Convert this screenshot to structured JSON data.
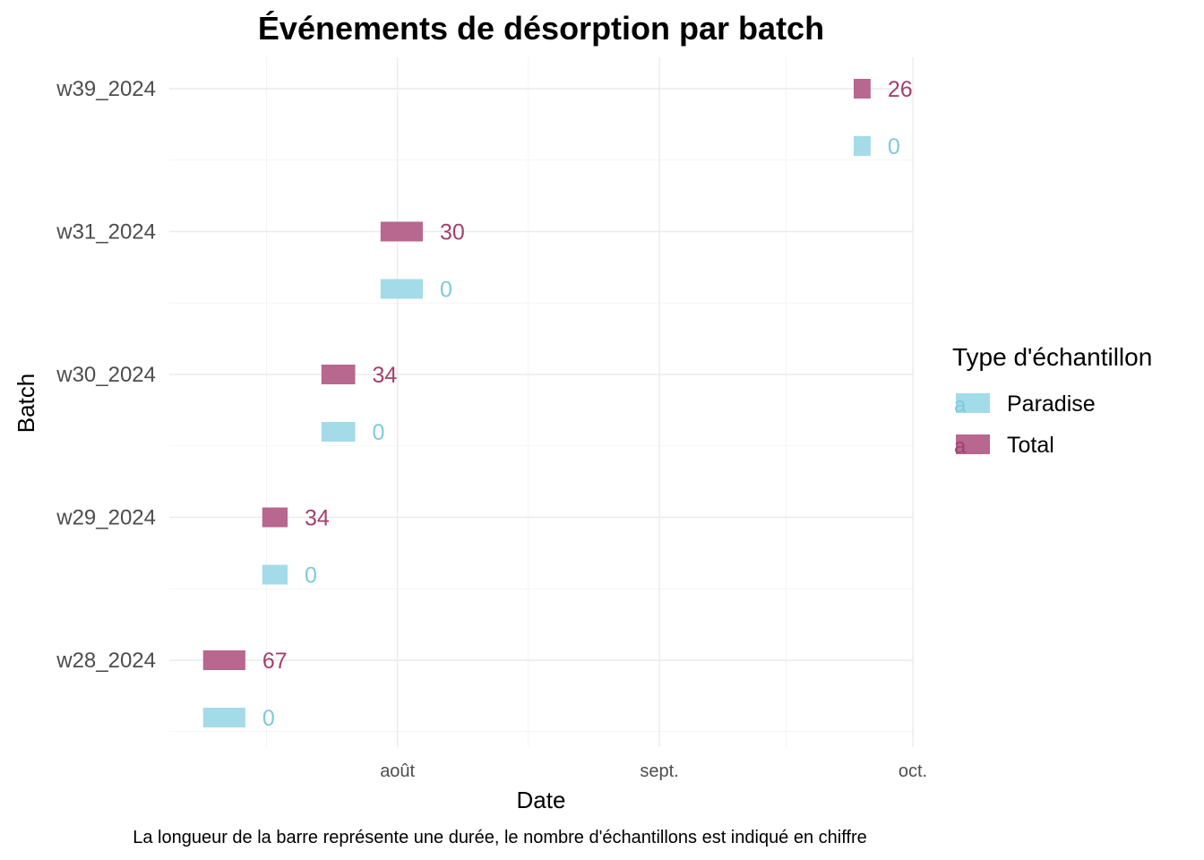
{
  "chart_data": {
    "type": "bar",
    "title": "Événements de désorption par batch",
    "xlabel": "Date",
    "ylabel": "Batch",
    "caption": "La longueur de la barre représente une durée, le nombre d'échantillons est indiqué en chiffre",
    "x_ticks": [
      {
        "date": "2024-08-01",
        "label": "août"
      },
      {
        "date": "2024-09-01",
        "label": "sept."
      },
      {
        "date": "2024-10-01",
        "label": "oct."
      }
    ],
    "xlim": [
      "2024-07-05",
      "2024-10-01"
    ],
    "categories": [
      "w28_2024",
      "w29_2024",
      "w30_2024",
      "w31_2024",
      "w39_2024"
    ],
    "legend": {
      "title": "Type d'échantillon",
      "position": "right",
      "key_letter": "a",
      "items": [
        {
          "name": "Paradise",
          "color": "#a3dbe9"
        },
        {
          "name": "Total",
          "color": "#b8678e"
        }
      ]
    },
    "series": [
      {
        "name": "Total",
        "color": "#b8678e",
        "label_color": "#a4406f",
        "bars": [
          {
            "batch": "w28_2024",
            "start": "2024-07-09",
            "end": "2024-07-14",
            "count": 67
          },
          {
            "batch": "w29_2024",
            "start": "2024-07-16",
            "end": "2024-07-19",
            "count": 34
          },
          {
            "batch": "w30_2024",
            "start": "2024-07-23",
            "end": "2024-07-27",
            "count": 34
          },
          {
            "batch": "w31_2024",
            "start": "2024-07-30",
            "end": "2024-08-04",
            "count": 30
          },
          {
            "batch": "w39_2024",
            "start": "2024-09-24",
            "end": "2024-09-26",
            "count": 26
          }
        ]
      },
      {
        "name": "Paradise",
        "color": "#a3dbe9",
        "label_color": "#7ccbdb",
        "bars": [
          {
            "batch": "w28_2024",
            "start": "2024-07-09",
            "end": "2024-07-14",
            "count": 0
          },
          {
            "batch": "w29_2024",
            "start": "2024-07-16",
            "end": "2024-07-19",
            "count": 0
          },
          {
            "batch": "w30_2024",
            "start": "2024-07-23",
            "end": "2024-07-27",
            "count": 0
          },
          {
            "batch": "w31_2024",
            "start": "2024-07-30",
            "end": "2024-08-04",
            "count": 0
          },
          {
            "batch": "w39_2024",
            "start": "2024-09-24",
            "end": "2024-09-26",
            "count": 0
          }
        ]
      }
    ]
  }
}
